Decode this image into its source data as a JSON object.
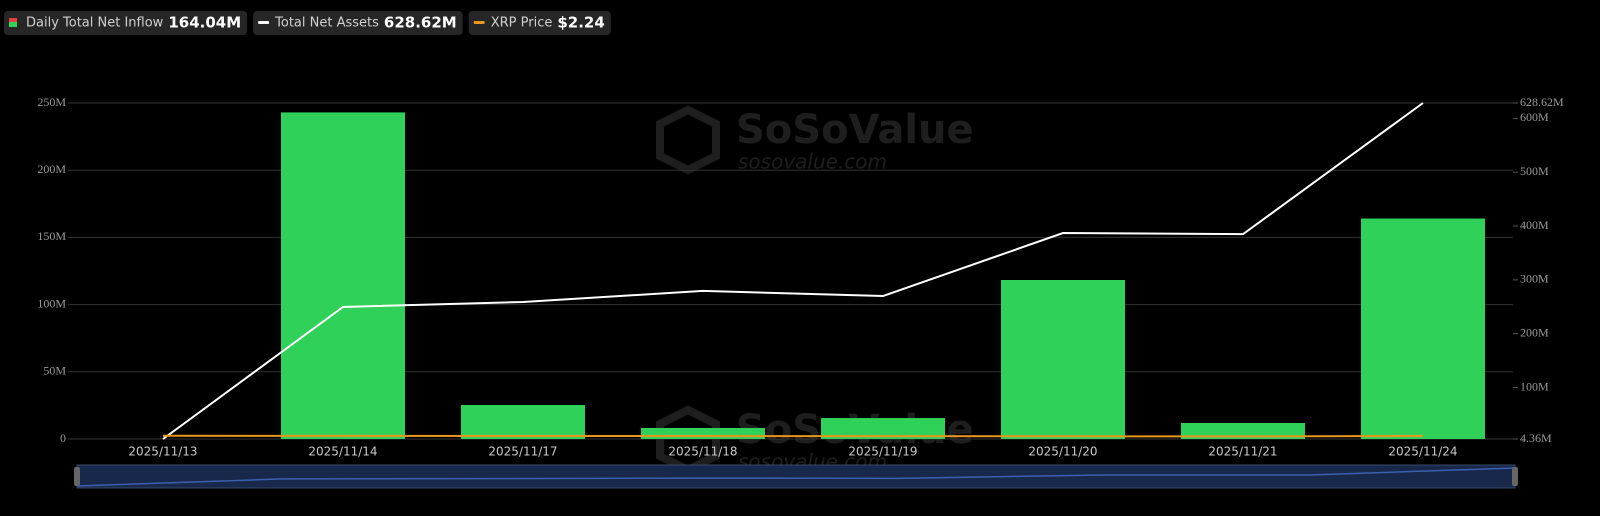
{
  "chart_data": {
    "type": "bar",
    "watermark": {
      "brand": "SoSoValue",
      "url": "sosovalue.com"
    },
    "categories": [
      "2025/11/13",
      "2025/11/14",
      "2025/11/17",
      "2025/11/18",
      "2025/11/19",
      "2025/11/20",
      "2025/11/21",
      "2025/11/24"
    ],
    "series": [
      {
        "name": "Daily Total Net Inflow",
        "type": "bar",
        "color": "#2fd158",
        "legend_value": "164.04M",
        "values": [
          0,
          243,
          25.3,
          8.2,
          15.6,
          118.3,
          11.9,
          164.04
        ]
      },
      {
        "name": "Total Net Assets",
        "type": "line",
        "axis": "y2",
        "color": "#ffffff",
        "legend_value": "628.62M",
        "values": [
          4.36,
          249.7,
          259,
          279.5,
          270,
          387,
          385,
          628.62
        ]
      },
      {
        "name": "XRP Price",
        "type": "line",
        "color": "#e8961e",
        "legend_value": "$2.24",
        "values": [
          2.4,
          2.3,
          2.2,
          2.2,
          2.1,
          2.0,
          1.95,
          2.24
        ]
      }
    ],
    "ylim": [
      0,
      250
    ],
    "yticks": [
      0,
      {
        "value": 50,
        "label": "50M"
      },
      {
        "value": 100,
        "label": "100M"
      },
      {
        "value": 150,
        "label": "150M"
      },
      {
        "value": 200,
        "label": "200M"
      },
      {
        "value": 250,
        "label": "250M"
      }
    ],
    "y2lim": [
      4.36,
      628.62
    ],
    "y2ticks": [
      {
        "value": 4.36,
        "label": "4.36M"
      },
      {
        "value": 100,
        "label": "100M"
      },
      {
        "value": 200,
        "label": "200M"
      },
      {
        "value": 300,
        "label": "300M"
      },
      {
        "value": 400,
        "label": "400M"
      },
      {
        "value": 500,
        "label": "500M"
      },
      {
        "value": 600,
        "label": "600M"
      },
      {
        "value": 628.62,
        "label": "628.62M"
      }
    ],
    "grid": true
  }
}
